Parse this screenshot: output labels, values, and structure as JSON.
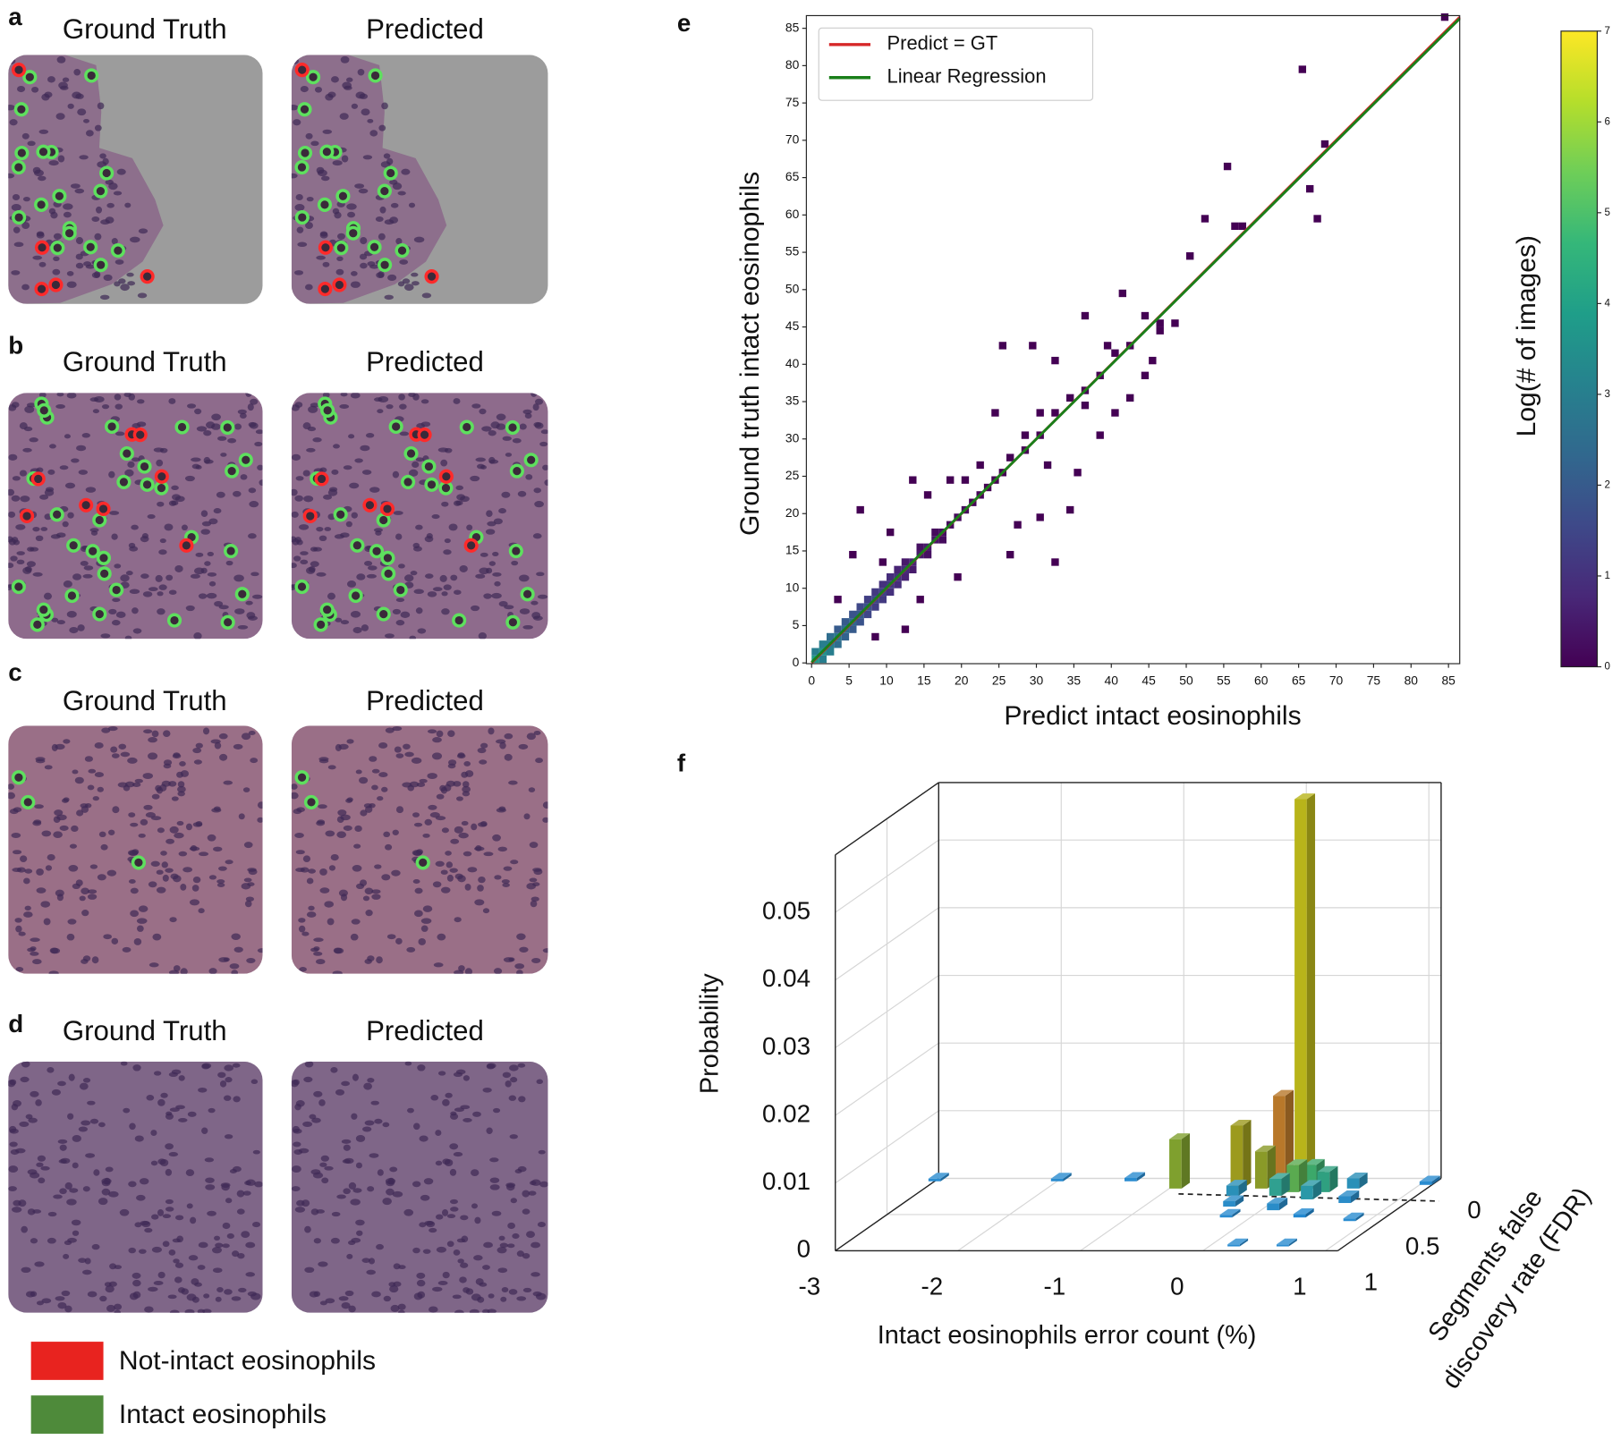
{
  "panels": [
    {
      "label": "a",
      "left_title": "Ground Truth",
      "right_title": "Predicted"
    },
    {
      "label": "b",
      "left_title": "Ground Truth",
      "right_title": "Predicted"
    },
    {
      "label": "c",
      "left_title": "Ground Truth",
      "right_title": "Predicted"
    },
    {
      "label": "d",
      "left_title": "Ground Truth",
      "right_title": "Predicted"
    }
  ],
  "legend": {
    "items": [
      {
        "label": "Not-intact eosinophils",
        "color": "#e8231f"
      },
      {
        "label": "Intact eosinophils",
        "color": "#4e8a3a"
      }
    ]
  },
  "chart_data": [
    {
      "type": "hist2d",
      "panel_label": "e",
      "xlabel": "Predict intact eosinophils",
      "ylabel": "Ground truth intact eosinophils",
      "xlim": [
        -0.7,
        86.5
      ],
      "ylim": [
        -0.1,
        86.7
      ],
      "xticks": [
        0,
        5,
        10,
        15,
        20,
        25,
        30,
        35,
        40,
        45,
        50,
        55,
        60,
        65,
        70,
        75,
        80,
        85
      ],
      "yticks": [
        0,
        5,
        10,
        15,
        20,
        25,
        30,
        35,
        40,
        45,
        50,
        55,
        60,
        65,
        70,
        75,
        80,
        85
      ],
      "cells": {
        "x": [
          0,
          1,
          0,
          1,
          2,
          1,
          2,
          3,
          2,
          3,
          4,
          3,
          4,
          5,
          4,
          5,
          6,
          5,
          6,
          7,
          6,
          7,
          8,
          7,
          8,
          9,
          8,
          9,
          10,
          9,
          10,
          11,
          10,
          11,
          12,
          11,
          12,
          13,
          12,
          13,
          14,
          15,
          14,
          15,
          16,
          17,
          16,
          17,
          18,
          19,
          20,
          21,
          22,
          23,
          24,
          25,
          26,
          28,
          30,
          32,
          34,
          36,
          38,
          40,
          42,
          44,
          46,
          48,
          50,
          52,
          55,
          57,
          56,
          65,
          67,
          66,
          68,
          84,
          6,
          9,
          14,
          12,
          8,
          3,
          13,
          18,
          20,
          30,
          32,
          27,
          25,
          30,
          29,
          32,
          36,
          40,
          44,
          45,
          41,
          36,
          31,
          35,
          38,
          26,
          34,
          22,
          24,
          28,
          19,
          10,
          5,
          15,
          42,
          46,
          39
        ],
        "y": [
          0,
          0,
          1,
          1,
          1,
          2,
          2,
          2,
          3,
          3,
          3,
          4,
          4,
          4,
          5,
          5,
          5,
          6,
          6,
          6,
          7,
          7,
          7,
          8,
          8,
          8,
          9,
          9,
          9,
          10,
          10,
          10,
          11,
          11,
          11,
          12,
          12,
          12,
          13,
          13,
          14,
          14,
          15,
          15,
          16,
          16,
          17,
          17,
          18,
          19,
          20,
          21,
          22,
          23,
          24,
          25,
          27,
          28,
          30,
          33,
          35,
          36,
          38,
          41,
          42,
          46,
          45,
          45,
          54,
          59,
          66,
          58,
          58,
          79,
          59,
          63,
          69,
          86,
          20,
          13,
          8,
          4,
          3,
          8,
          24,
          24,
          24,
          19,
          13,
          18,
          42,
          33,
          42,
          40,
          34,
          33,
          38,
          40,
          49,
          46,
          26,
          25,
          30,
          14,
          20,
          26,
          33,
          30,
          11,
          17,
          14,
          22,
          35,
          44,
          42
        ],
        "values": [
          3.8,
          3,
          3,
          3.5,
          3,
          3,
          3,
          2.5,
          2.5,
          2.8,
          2.2,
          2,
          2.5,
          2,
          2,
          2.3,
          1.8,
          1.8,
          2,
          1.5,
          1.5,
          1.8,
          1.3,
          1.3,
          1.5,
          1.2,
          1.2,
          1.4,
          1,
          1,
          1.2,
          0.9,
          0.9,
          1,
          0.7,
          0.7,
          0.9,
          0.5,
          0.5,
          0.7,
          0.5,
          0.3,
          0.3,
          0.5,
          0.4,
          0.2,
          0.2,
          0.3,
          0.2,
          0.2,
          0.2,
          0.1,
          0.1,
          0,
          0,
          0,
          0,
          0,
          0,
          0,
          0,
          0,
          0,
          0,
          0,
          0,
          0,
          0,
          0,
          0,
          0,
          0,
          0,
          0,
          0,
          0,
          0,
          0,
          0,
          0,
          0,
          0,
          0,
          0,
          0,
          0,
          0,
          0,
          0,
          0,
          0,
          0,
          0,
          0,
          0,
          0,
          0,
          0,
          0,
          0,
          0,
          0,
          0,
          0,
          0,
          0,
          0,
          0,
          0,
          0,
          0,
          0,
          0,
          0,
          0
        ]
      },
      "lines": [
        {
          "name": "Predict = GT",
          "color": "#d62728",
          "x": [
            0,
            86.5
          ],
          "values": [
            0,
            86.5
          ]
        },
        {
          "name": "Linear Regression",
          "color": "#1a7f1a",
          "x": [
            0,
            86.5
          ],
          "values": [
            0.1,
            86.3
          ]
        }
      ],
      "legend": "upper left",
      "colorbar": {
        "label": "Log(# of images)",
        "colormap": "viridis",
        "lim": [
          0,
          7
        ],
        "ticks": [
          0,
          1,
          2,
          3,
          4,
          5,
          6,
          7
        ]
      }
    },
    {
      "type": "bar3d",
      "panel_label": "f",
      "xlabel": "Intact eosinophils error count (%)",
      "ylabel": [
        "Segments false",
        "discovery rate (FDR)"
      ],
      "zlabel": "Probability",
      "xlim": [
        -3,
        1.1
      ],
      "ylim": [
        0,
        1
      ],
      "zlim": [
        0,
        0.0585
      ],
      "xticks": [
        -3,
        -2,
        -1,
        0,
        1
      ],
      "yticks": [
        0,
        0.5,
        1
      ],
      "zticks": [
        0,
        0.01,
        0.02,
        0.03,
        0.04,
        0.05
      ],
      "bars": {
        "x": [
          0.03,
          -0.12,
          -0.45,
          -0.95,
          -0.25,
          0.05,
          0.15,
          0.3,
          -0.05,
          0.25,
          0.5,
          -0.4,
          0.6,
          0.1,
          -0.3,
          0.4,
          -3,
          -2,
          -1.4,
          1.05,
          0.2,
          0.6,
          -0.2,
          0.85
        ],
        "y": [
          0.05,
          0.08,
          0.1,
          0.1,
          0.1,
          0.15,
          0.1,
          0.15,
          0.2,
          0.25,
          0.1,
          0.2,
          0.3,
          0.4,
          0.35,
          0.5,
          0,
          0,
          0,
          0.05,
          0.9,
          0.9,
          0.5,
          0.55
        ],
        "values": [
          0.057,
          0.0135,
          0.0093,
          0.0073,
          0.0055,
          0.004,
          0.0035,
          0.003,
          0.0025,
          0.002,
          0.0015,
          0.0015,
          0.001,
          0.001,
          0.0008,
          0.0005,
          0.0004,
          0.0004,
          0.0005,
          0.0005,
          0.0003,
          0.0003,
          0.0004,
          0.0004
        ],
        "colors": [
          "#b8b41a",
          "#b8782a",
          "#9c9a1e",
          "#7fa02e",
          "#8a9a28",
          "#5aaa50",
          "#3ca86a",
          "#2fa080",
          "#30a090",
          "#2a98a8",
          "#2a90b8",
          "#2a90b8",
          "#2a8cc8",
          "#2a8cc8",
          "#2a8cc8",
          "#2288d0",
          "#2a8cd0",
          "#2a8cd0",
          "#2a8cd0",
          "#2a8cd0",
          "#2a8cd0",
          "#2a8cd0",
          "#2a8cd0",
          "#2a8cd0"
        ]
      }
    }
  ]
}
